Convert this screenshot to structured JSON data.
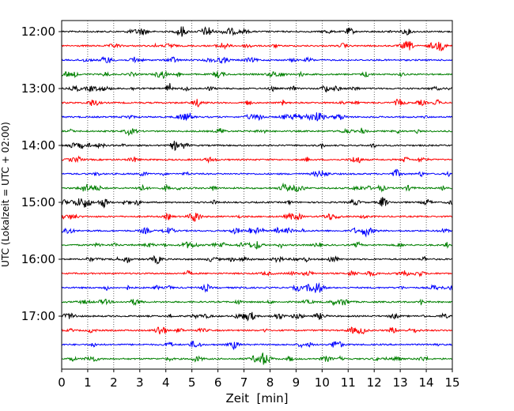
{
  "chart_data": {
    "type": "line",
    "title": "",
    "xlabel": "Zeit  [min]",
    "ylabel": "UTC (Lokalzeit = UTC + 02:00)",
    "xlim": [
      0,
      15
    ],
    "x_ticks": [
      "0",
      "1",
      "2",
      "3",
      "4",
      "5",
      "6",
      "7",
      "8",
      "9",
      "10",
      "11",
      "12",
      "13",
      "14",
      "15"
    ],
    "y_ticks": [
      "12:00",
      "13:00",
      "14:00",
      "15:00",
      "16:00",
      "17:00"
    ],
    "grid": "vertical dotted lines at each minute",
    "trace_colors": [
      "#000000",
      "#ff0000",
      "#0000ff",
      "#008000"
    ],
    "traces": [
      {
        "start": "12:00"
      },
      {
        "start": "12:15"
      },
      {
        "start": "12:30"
      },
      {
        "start": "12:45"
      },
      {
        "start": "13:00"
      },
      {
        "start": "13:15"
      },
      {
        "start": "13:30"
      },
      {
        "start": "13:45"
      },
      {
        "start": "14:00"
      },
      {
        "start": "14:15"
      },
      {
        "start": "14:30"
      },
      {
        "start": "14:45"
      },
      {
        "start": "15:00"
      },
      {
        "start": "15:15"
      },
      {
        "start": "15:30"
      },
      {
        "start": "15:45"
      },
      {
        "start": "16:00"
      },
      {
        "start": "16:15"
      },
      {
        "start": "16:30"
      },
      {
        "start": "16:45"
      },
      {
        "start": "17:00"
      },
      {
        "start": "17:15"
      },
      {
        "start": "17:30"
      },
      {
        "start": "17:45"
      }
    ]
  }
}
